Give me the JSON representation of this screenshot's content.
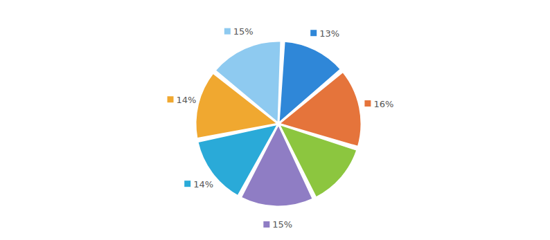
{
  "chart_data": {
    "type": "pie",
    "values": [
      15,
      13,
      16,
      13,
      15,
      14,
      14
    ],
    "value_labels": [
      "15%",
      "13%",
      "16%",
      null,
      "15%",
      "14%",
      "14%"
    ],
    "colors": [
      "#8ecaf0",
      "#2f87d8",
      "#e5743b",
      "#8cc63f",
      "#8f7dc4",
      "#2aaad8",
      "#f0a830"
    ],
    "data_labels": true
  }
}
